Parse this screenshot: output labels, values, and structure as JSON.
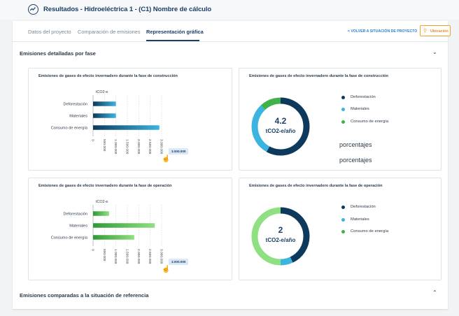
{
  "header": {
    "title": "Resultados - Hidroeléctrica 1 - (C1) Nombre de cálculo",
    "icon": "chart-icon"
  },
  "tabs": [
    {
      "label": "Datos del proyecto",
      "active": false
    },
    {
      "label": "Comparación de emisiones",
      "active": false
    },
    {
      "label": "Representación gráfica",
      "active": true
    }
  ],
  "back_link": "< VOLVER A SITUACIÓN DE PROYECTO",
  "location_button": "Ubicación",
  "section_detail": "Emisiones detalladas por fase",
  "section_compare": "Emisiones comparadas a la situación de referencia",
  "colors": {
    "navy": "#0d3a5c",
    "light_blue": "#3cb4e0",
    "green": "#3fb24a",
    "light_green": "#8fe080",
    "bar_blue": "#1f6f9e",
    "bar_green": "#4cc84a"
  },
  "construction_bar": {
    "title": "Emisiones de gases de efecto invernadero durante la fase de construcción",
    "unit": "tCO2-e",
    "tooltip": "3.000.000",
    "chart_data": {
      "type": "bar",
      "orientation": "horizontal",
      "categories": [
        "Deforestación",
        "Materiales",
        "Consumo de energía"
      ],
      "values": [
        1000000,
        1000000,
        2900000
      ],
      "ticks": [
        "0",
        "500.000",
        "1.000.000",
        "1.500.000",
        "2.000.000",
        "2.500.000",
        "3.000.000"
      ],
      "tick_values": [
        0,
        500000,
        1000000,
        1500000,
        2000000,
        2500000,
        3000000
      ],
      "xlim": [
        0,
        3000000
      ],
      "ylabel": "tCO2-e",
      "grid": true
    }
  },
  "construction_donut": {
    "title": "Emisiones de gases de efecto invernadero durante la fase de construcción",
    "value": "4.2",
    "unit": "tCO2-e/año",
    "legend": [
      "Deforestación",
      "Materiales",
      "Consumo de energía"
    ],
    "percent_label_1": "porcentajes",
    "percent_label_2": "porcentajes",
    "chart_data": {
      "type": "pie",
      "donut": true,
      "categories": [
        "Deforestación",
        "Materiales",
        "Consumo de energía"
      ],
      "values": [
        58,
        30,
        12
      ]
    }
  },
  "operation_bar": {
    "title": "Emisiones de gases de efecto invernadero durante la fase de operación",
    "unit": "tCO2-e",
    "tooltip": "3.000.000",
    "chart_data": {
      "type": "bar",
      "orientation": "horizontal",
      "categories": [
        "Deforestación",
        "Materiales",
        "Consumo de energía"
      ],
      "values": [
        700000,
        2700000,
        1800000
      ],
      "ticks": [
        "0",
        "500.000",
        "1.000.000",
        "1.500.000",
        "2.000.000",
        "2.500.000",
        "3.000.000"
      ],
      "tick_values": [
        0,
        500000,
        1000000,
        1500000,
        2000000,
        2500000,
        3000000
      ],
      "xlim": [
        0,
        3000000
      ],
      "ylabel": "tCO2-e",
      "grid": true
    }
  },
  "operation_donut": {
    "title": "Emisiones de gases de efecto invernadero durante la fase de operación",
    "value": "2",
    "unit": "tCO2-e/año",
    "legend": [
      "Deforestación",
      "Materiales",
      "Consumo de energía"
    ],
    "chart_data": {
      "type": "pie",
      "donut": true,
      "categories": [
        "Deforestación",
        "Materiales",
        "Consumo de energía"
      ],
      "values": [
        43,
        7,
        50
      ]
    }
  }
}
